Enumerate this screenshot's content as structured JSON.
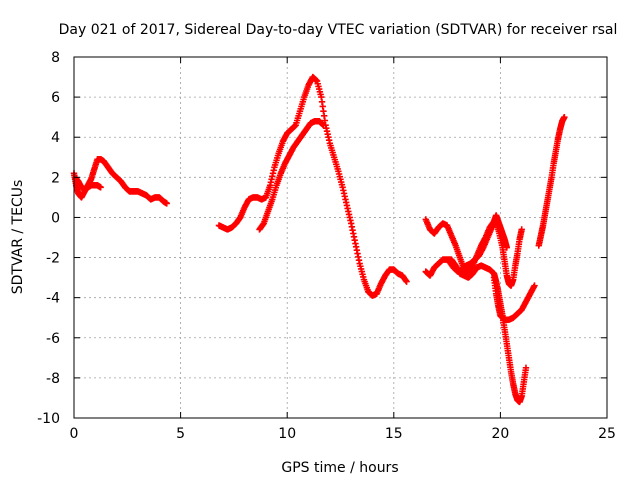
{
  "chart_data": {
    "type": "scatter",
    "title": "Day 021 of 2017, Sidereal Day-to-day VTEC variation (SDTVAR) for receiver rsal",
    "xlabel": "GPS time / hours",
    "ylabel": "SDTVAR / TECUs",
    "xlim": [
      0,
      25
    ],
    "ylim": [
      -10,
      8
    ],
    "xticks": [
      0,
      5,
      10,
      15,
      20,
      25
    ],
    "yticks": [
      -10,
      -8,
      -6,
      -4,
      -2,
      0,
      2,
      4,
      6,
      8
    ],
    "grid": true,
    "marker": "+",
    "color": "#ff0000",
    "series": [
      {
        "points": [
          [
            0.0,
            2.2
          ],
          [
            0.1,
            1.6
          ],
          [
            0.2,
            1.2
          ],
          [
            0.35,
            1.0
          ],
          [
            0.5,
            1.3
          ],
          [
            0.65,
            1.6
          ],
          [
            0.8,
            1.9
          ],
          [
            0.95,
            2.4
          ],
          [
            1.1,
            2.9
          ],
          [
            1.25,
            2.9
          ],
          [
            1.4,
            2.8
          ],
          [
            1.6,
            2.5
          ],
          [
            1.8,
            2.2
          ],
          [
            2.0,
            2.0
          ],
          [
            2.2,
            1.8
          ],
          [
            2.4,
            1.5
          ],
          [
            2.6,
            1.3
          ],
          [
            2.8,
            1.3
          ],
          [
            3.0,
            1.3
          ],
          [
            3.2,
            1.2
          ],
          [
            3.4,
            1.1
          ],
          [
            3.6,
            0.9
          ],
          [
            3.8,
            1.0
          ],
          [
            4.0,
            1.0
          ],
          [
            4.2,
            0.8
          ],
          [
            4.35,
            0.7
          ]
        ]
      },
      {
        "points": [
          [
            0.05,
            2.0
          ],
          [
            0.2,
            1.8
          ],
          [
            0.35,
            1.5
          ],
          [
            0.5,
            1.4
          ],
          [
            0.65,
            1.5
          ],
          [
            0.8,
            1.6
          ],
          [
            0.95,
            1.6
          ],
          [
            1.1,
            1.6
          ],
          [
            1.25,
            1.5
          ]
        ]
      },
      {
        "points": [
          [
            6.8,
            -0.4
          ],
          [
            7.0,
            -0.5
          ],
          [
            7.2,
            -0.6
          ],
          [
            7.4,
            -0.5
          ],
          [
            7.6,
            -0.3
          ],
          [
            7.8,
            0.0
          ],
          [
            8.0,
            0.5
          ],
          [
            8.2,
            0.9
          ],
          [
            8.4,
            1.0
          ],
          [
            8.6,
            1.0
          ],
          [
            8.8,
            0.9
          ],
          [
            9.0,
            1.0
          ],
          [
            9.2,
            1.6
          ],
          [
            9.4,
            2.5
          ],
          [
            9.6,
            3.2
          ],
          [
            9.8,
            3.8
          ],
          [
            10.0,
            4.2
          ],
          [
            10.2,
            4.4
          ],
          [
            10.4,
            4.6
          ],
          [
            10.6,
            5.3
          ],
          [
            10.8,
            6.0
          ],
          [
            11.0,
            6.6
          ],
          [
            11.2,
            7.0
          ],
          [
            11.4,
            6.8
          ],
          [
            11.6,
            6.0
          ],
          [
            11.8,
            4.6
          ],
          [
            12.0,
            3.7
          ],
          [
            12.2,
            3.0
          ],
          [
            12.4,
            2.3
          ],
          [
            12.6,
            1.5
          ],
          [
            12.8,
            0.6
          ],
          [
            13.0,
            -0.3
          ],
          [
            13.2,
            -1.3
          ],
          [
            13.4,
            -2.3
          ],
          [
            13.6,
            -3.1
          ],
          [
            13.8,
            -3.7
          ],
          [
            14.0,
            -3.9
          ],
          [
            14.2,
            -3.8
          ],
          [
            14.4,
            -3.3
          ],
          [
            14.6,
            -2.9
          ],
          [
            14.8,
            -2.6
          ],
          [
            15.0,
            -2.6
          ],
          [
            15.2,
            -2.8
          ],
          [
            15.4,
            -2.9
          ],
          [
            15.6,
            -3.2
          ]
        ]
      },
      {
        "points": [
          [
            8.7,
            -0.6
          ],
          [
            8.9,
            -0.3
          ],
          [
            9.1,
            0.3
          ],
          [
            9.3,
            0.9
          ],
          [
            9.5,
            1.6
          ],
          [
            9.7,
            2.2
          ],
          [
            9.9,
            2.7
          ],
          [
            10.1,
            3.1
          ],
          [
            10.3,
            3.5
          ],
          [
            10.5,
            3.8
          ],
          [
            10.7,
            4.1
          ],
          [
            10.9,
            4.4
          ],
          [
            11.1,
            4.7
          ],
          [
            11.3,
            4.8
          ],
          [
            11.5,
            4.8
          ],
          [
            11.7,
            4.6
          ]
        ]
      },
      {
        "points": [
          [
            16.5,
            -2.7
          ],
          [
            16.7,
            -2.9
          ],
          [
            16.9,
            -2.5
          ],
          [
            17.1,
            -2.3
          ],
          [
            17.3,
            -2.1
          ],
          [
            17.5,
            -2.1
          ],
          [
            17.7,
            -2.1
          ],
          [
            17.9,
            -2.4
          ],
          [
            18.1,
            -2.8
          ],
          [
            18.3,
            -2.9
          ],
          [
            18.5,
            -3.0
          ],
          [
            18.7,
            -2.8
          ],
          [
            18.9,
            -2.5
          ],
          [
            19.1,
            -2.4
          ],
          [
            19.3,
            -2.5
          ],
          [
            19.5,
            -2.6
          ],
          [
            19.7,
            -2.8
          ],
          [
            19.8,
            -3.2
          ],
          [
            19.9,
            -3.7
          ],
          [
            20.0,
            -4.3
          ],
          [
            20.1,
            -4.9
          ],
          [
            20.2,
            -5.6
          ],
          [
            20.3,
            -6.3
          ],
          [
            20.4,
            -7.0
          ],
          [
            20.5,
            -7.7
          ],
          [
            20.6,
            -8.3
          ],
          [
            20.7,
            -8.8
          ],
          [
            20.8,
            -9.1
          ],
          [
            20.9,
            -9.2
          ],
          [
            21.0,
            -8.9
          ],
          [
            21.1,
            -8.2
          ],
          [
            21.2,
            -7.5
          ]
        ]
      },
      {
        "points": [
          [
            16.5,
            -0.1
          ],
          [
            16.7,
            -0.6
          ],
          [
            16.9,
            -0.8
          ],
          [
            17.1,
            -0.5
          ],
          [
            17.3,
            -0.3
          ],
          [
            17.5,
            -0.4
          ],
          [
            17.7,
            -0.9
          ],
          [
            17.9,
            -1.4
          ],
          [
            18.1,
            -2.0
          ],
          [
            18.3,
            -2.6
          ],
          [
            18.5,
            -2.7
          ],
          [
            18.7,
            -2.4
          ],
          [
            18.9,
            -1.9
          ],
          [
            19.1,
            -1.4
          ],
          [
            19.3,
            -1.0
          ],
          [
            19.5,
            -0.5
          ],
          [
            19.7,
            -0.2
          ],
          [
            19.8,
            0.1
          ],
          [
            19.9,
            -0.2
          ],
          [
            20.0,
            -0.5
          ],
          [
            20.1,
            -0.8
          ],
          [
            20.2,
            -1.1
          ],
          [
            20.3,
            -1.5
          ]
        ]
      },
      {
        "points": [
          [
            17.6,
            -2.2
          ],
          [
            17.8,
            -2.5
          ],
          [
            18.0,
            -2.7
          ],
          [
            18.2,
            -2.6
          ],
          [
            18.4,
            -2.4
          ],
          [
            18.6,
            -2.3
          ],
          [
            18.8,
            -2.1
          ],
          [
            19.0,
            -1.9
          ],
          [
            19.2,
            -1.5
          ],
          [
            19.4,
            -1.0
          ],
          [
            19.6,
            -0.5
          ],
          [
            19.8,
            -0.2
          ],
          [
            19.95,
            -0.8
          ],
          [
            20.1,
            -1.5
          ],
          [
            20.2,
            -2.2
          ],
          [
            20.3,
            -2.9
          ],
          [
            20.4,
            -3.3
          ],
          [
            20.5,
            -3.4
          ],
          [
            20.6,
            -3.1
          ],
          [
            20.7,
            -2.4
          ],
          [
            20.8,
            -1.8
          ],
          [
            20.9,
            -1.1
          ],
          [
            21.0,
            -0.6
          ]
        ]
      },
      {
        "points": [
          [
            19.7,
            -3.0
          ],
          [
            19.8,
            -3.8
          ],
          [
            19.9,
            -4.4
          ],
          [
            20.0,
            -4.9
          ],
          [
            20.2,
            -5.1
          ],
          [
            20.4,
            -5.1
          ],
          [
            20.6,
            -5.0
          ],
          [
            20.8,
            -4.8
          ],
          [
            21.0,
            -4.6
          ],
          [
            21.2,
            -4.2
          ],
          [
            21.4,
            -3.8
          ],
          [
            21.6,
            -3.4
          ]
        ]
      },
      {
        "points": [
          [
            21.8,
            -1.4
          ],
          [
            21.9,
            -0.9
          ],
          [
            22.0,
            -0.4
          ],
          [
            22.1,
            0.2
          ],
          [
            22.2,
            0.8
          ],
          [
            22.3,
            1.4
          ],
          [
            22.4,
            2.0
          ],
          [
            22.5,
            2.7
          ],
          [
            22.6,
            3.3
          ],
          [
            22.7,
            3.9
          ],
          [
            22.8,
            4.4
          ],
          [
            22.9,
            4.8
          ],
          [
            23.0,
            5.0
          ]
        ]
      }
    ]
  }
}
